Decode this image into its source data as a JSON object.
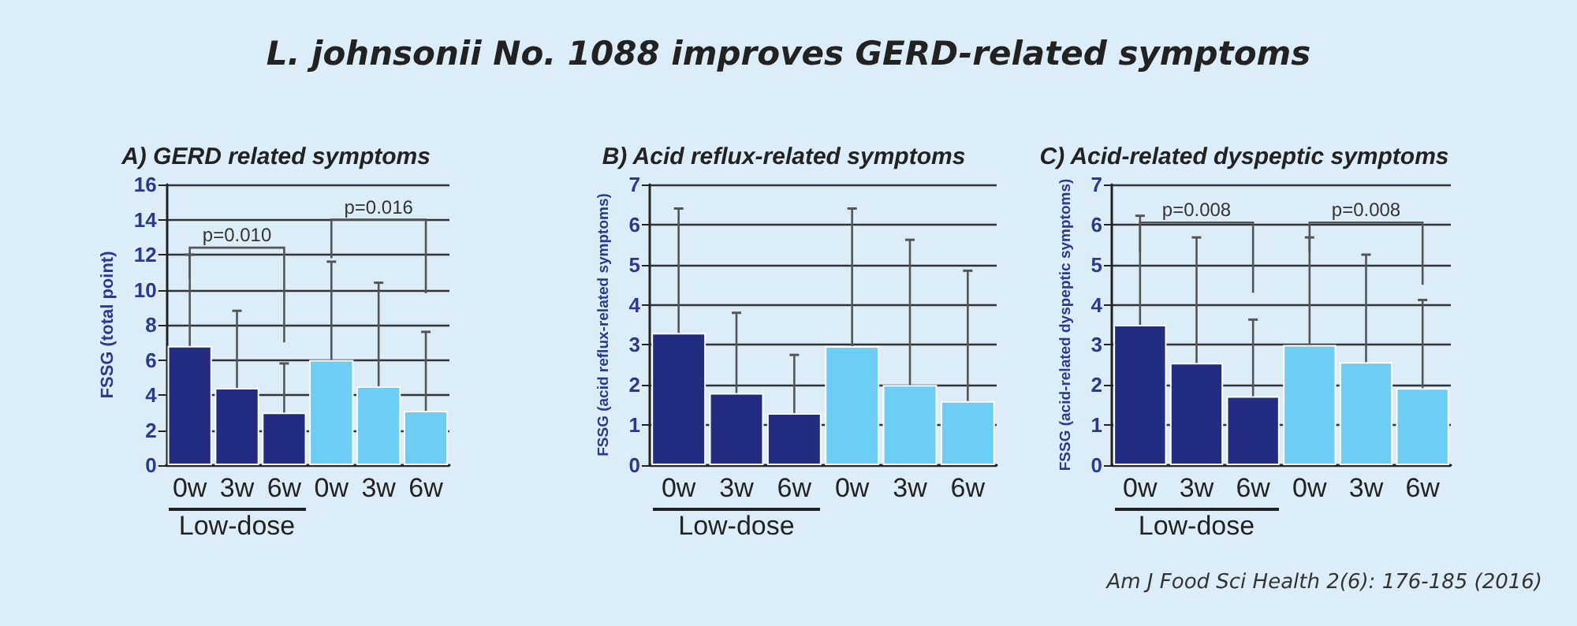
{
  "chart_data": [
    {
      "type": "bar",
      "title": "A) GERD related symptoms",
      "ylabel": "FSSG (total point)",
      "categories": [
        "0w",
        "3w",
        "6w",
        "0w",
        "3w",
        "6w"
      ],
      "values": [
        6.8,
        4.4,
        3.0,
        6.0,
        4.5,
        3.1
      ],
      "colors": [
        "#232c80",
        "#232c80",
        "#232c80",
        "#6dcef5",
        "#6dcef5",
        "#6dcef5"
      ],
      "errors": [
        [
          6.8,
          12.0
        ],
        [
          4.4,
          8.8
        ],
        [
          3.0,
          5.8
        ],
        [
          6.0,
          11.6
        ],
        [
          4.5,
          10.4
        ],
        [
          3.1,
          7.6
        ]
      ],
      "ylim": [
        0,
        16
      ],
      "yticks": [
        0,
        2,
        4,
        6,
        8,
        10,
        12,
        14,
        16
      ],
      "grid": "y",
      "annotations": [
        "L. johnsonii No. 1088 improves GERD-related symptoms",
        "Low-dose",
        "p=0.010",
        "p=0.016"
      ]
    },
    {
      "type": "bar",
      "title": "B) Acid reflux-related symptoms",
      "ylabel": "FSSG (acid reflux-related symptoms)",
      "categories": [
        "0w",
        "3w",
        "6w",
        "0w",
        "3w",
        "6w"
      ],
      "values": [
        3.3,
        1.8,
        1.3,
        2.97,
        2.0,
        1.6
      ],
      "colors": [
        "#232c80",
        "#232c80",
        "#232c80",
        "#6dcef5",
        "#6dcef5",
        "#6dcef5"
      ],
      "errors": [
        [
          3.3,
          6.4
        ],
        [
          1.8,
          3.8
        ],
        [
          1.3,
          2.75
        ],
        [
          2.97,
          6.4
        ],
        [
          2.0,
          5.62
        ],
        [
          1.6,
          4.85
        ]
      ],
      "ylim": [
        0,
        7
      ],
      "yticks": [
        0,
        1,
        2,
        3,
        4,
        5,
        6,
        7
      ],
      "grid": "y",
      "annotations": [
        "Low-dose"
      ]
    },
    {
      "type": "bar",
      "title": "C) Acid-related dyspeptic symptoms",
      "ylabel": "FSSG (acid-related dyspeptic symptoms)",
      "categories": [
        "0w",
        "3w",
        "6w",
        "0w",
        "3w",
        "6w"
      ],
      "values": [
        3.5,
        2.55,
        1.72,
        3.0,
        2.57,
        1.92
      ],
      "colors": [
        "#232c80",
        "#232c80",
        "#232c80",
        "#6dcef5",
        "#6dcef5",
        "#6dcef5"
      ],
      "errors": [
        [
          3.5,
          6.22
        ],
        [
          2.55,
          5.68
        ],
        [
          1.72,
          3.63
        ],
        [
          3.0,
          5.68
        ],
        [
          2.57,
          5.25
        ],
        [
          1.92,
          4.12
        ]
      ],
      "ylim": [
        0,
        7
      ],
      "yticks": [
        0,
        1,
        2,
        3,
        4,
        5,
        6,
        7
      ],
      "grid": "y",
      "annotations": [
        "Low-dose",
        "p=0.008",
        "p=0.008",
        "Am J Food Sci Health 2(6): 176-185 (2016)"
      ]
    }
  ]
}
